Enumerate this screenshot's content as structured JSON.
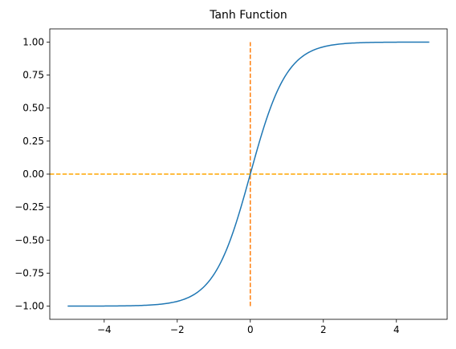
{
  "chart_data": {
    "type": "line",
    "title": "Tanh Function",
    "xlabel": "",
    "ylabel": "",
    "xlim": [
      -5.49,
      5.39
    ],
    "ylim": [
      -1.1,
      1.1
    ],
    "xticks": [
      -4,
      -2,
      0,
      2,
      4
    ],
    "xtick_labels": [
      "−4",
      "−2",
      "0",
      "2",
      "4"
    ],
    "yticks": [
      -1.0,
      -0.75,
      -0.5,
      -0.25,
      0.0,
      0.25,
      0.5,
      0.75,
      1.0
    ],
    "ytick_labels": [
      "−1.00",
      "−0.75",
      "−0.50",
      "−0.25",
      "0.00",
      "0.25",
      "0.50",
      "0.75",
      "1.00"
    ],
    "grid": false,
    "series": [
      {
        "function": "tanh",
        "x_range": [
          -5.0,
          4.9
        ],
        "x": [
          -5.0,
          -4.5,
          -4.0,
          -3.5,
          -3.0,
          -2.5,
          -2.0,
          -1.75,
          -1.5,
          -1.25,
          -1.0,
          -0.75,
          -0.5,
          -0.25,
          0.0,
          0.25,
          0.5,
          0.75,
          1.0,
          1.25,
          1.5,
          1.75,
          2.0,
          2.5,
          3.0,
          3.5,
          4.0,
          4.5,
          4.9
        ],
        "y": [
          -0.9999,
          -0.9998,
          -0.9993,
          -0.9982,
          -0.9951,
          -0.9866,
          -0.964,
          -0.9414,
          -0.9051,
          -0.8483,
          -0.7616,
          -0.6351,
          -0.4621,
          -0.2449,
          0.0,
          0.2449,
          0.4621,
          0.6351,
          0.7616,
          0.8483,
          0.9051,
          0.9414,
          0.964,
          0.9866,
          0.9951,
          0.9982,
          0.9993,
          0.9998,
          0.9999
        ],
        "color": "#1f77b4",
        "style": "solid"
      }
    ],
    "reference_lines": [
      {
        "orientation": "horizontal",
        "value": 0.0,
        "color": "#ffa500",
        "style": "dashed",
        "span": "full"
      },
      {
        "orientation": "vertical",
        "value": 0.0,
        "from": -1.0,
        "to": 1.0,
        "color": "#ff7f0e",
        "style": "dashed"
      }
    ]
  }
}
